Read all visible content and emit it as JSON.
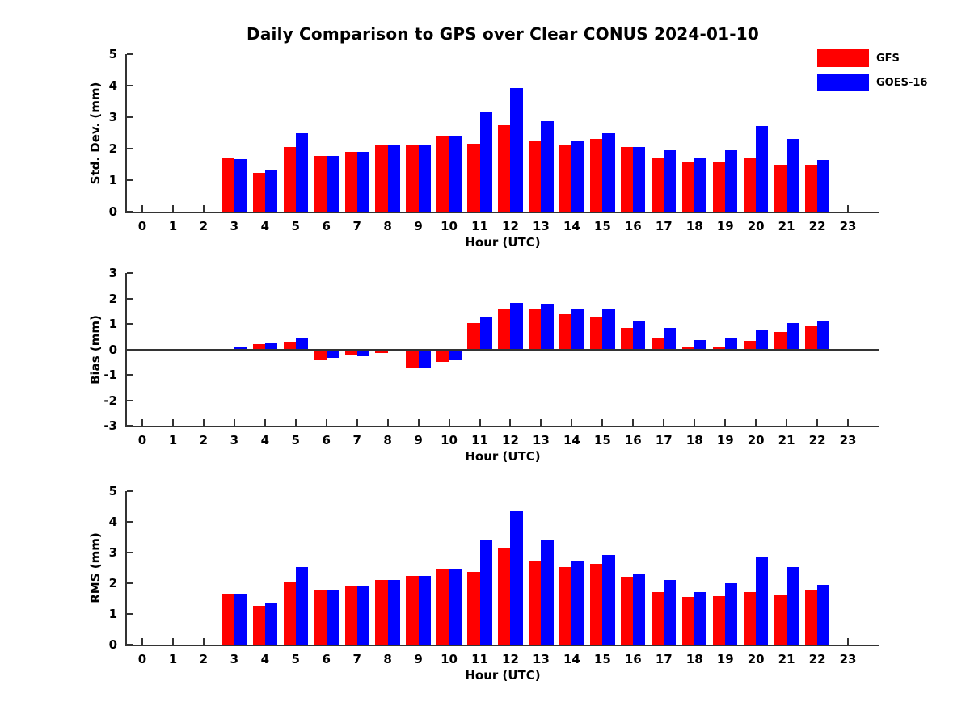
{
  "title": "Daily Comparison to GPS over Clear CONUS 2024-01-10",
  "legend": {
    "items": [
      {
        "label": "GFS",
        "color": "#ff0000"
      },
      {
        "label": "GOES-16",
        "color": "#0000ff"
      }
    ]
  },
  "chart_data": [
    {
      "type": "bar",
      "ylabel": "Std. Dev. (mm)",
      "xlabel": "Hour (UTC)",
      "ylim": [
        0,
        5
      ],
      "yticks": [
        0,
        1,
        2,
        3,
        4,
        5
      ],
      "grid": false,
      "legend_position": "upper right outside plot",
      "categories": [
        "0",
        "1",
        "2",
        "3",
        "4",
        "5",
        "6",
        "7",
        "8",
        "9",
        "10",
        "11",
        "12",
        "13",
        "14",
        "15",
        "16",
        "17",
        "18",
        "19",
        "20",
        "21",
        "22",
        "23"
      ],
      "series": [
        {
          "name": "GFS",
          "color": "#ff0000",
          "values": [
            null,
            null,
            null,
            1.7,
            1.22,
            2.05,
            1.78,
            1.9,
            2.1,
            2.13,
            2.42,
            2.16,
            2.75,
            2.24,
            2.12,
            2.31,
            2.05,
            1.7,
            1.56,
            1.57,
            1.72,
            1.5,
            1.5,
            null
          ]
        },
        {
          "name": "GOES-16",
          "color": "#0000ff",
          "values": [
            null,
            null,
            null,
            1.67,
            1.32,
            2.48,
            1.78,
            1.9,
            2.1,
            2.13,
            2.42,
            3.15,
            3.93,
            2.88,
            2.25,
            2.48,
            2.05,
            1.94,
            1.68,
            1.95,
            2.71,
            2.3,
            1.63,
            null
          ]
        }
      ]
    },
    {
      "type": "bar",
      "ylabel": "Bias (mm)",
      "xlabel": "Hour (UTC)",
      "ylim": [
        -3,
        3
      ],
      "yticks": [
        -3,
        -2,
        -1,
        0,
        1,
        2,
        3
      ],
      "grid": false,
      "zero_line": true,
      "categories": [
        "0",
        "1",
        "2",
        "3",
        "4",
        "5",
        "6",
        "7",
        "8",
        "9",
        "10",
        "11",
        "12",
        "13",
        "14",
        "15",
        "16",
        "17",
        "18",
        "19",
        "20",
        "21",
        "22",
        "23"
      ],
      "series": [
        {
          "name": "GFS",
          "color": "#ff0000",
          "values": [
            null,
            null,
            null,
            0.03,
            0.2,
            0.29,
            -0.44,
            -0.22,
            -0.13,
            -0.72,
            -0.5,
            1.04,
            1.57,
            1.6,
            1.37,
            1.27,
            0.85,
            0.45,
            0.12,
            0.12,
            0.34,
            0.68,
            0.94,
            null
          ]
        },
        {
          "name": "GOES-16",
          "color": "#0000ff",
          "values": [
            null,
            null,
            null,
            0.1,
            0.23,
            0.42,
            -0.33,
            -0.26,
            -0.08,
            -0.72,
            -0.42,
            1.27,
            1.84,
            1.8,
            1.56,
            1.56,
            1.08,
            0.83,
            0.38,
            0.44,
            0.78,
            1.04,
            1.12,
            null
          ]
        }
      ]
    },
    {
      "type": "bar",
      "ylabel": "RMS (mm)",
      "xlabel": "Hour (UTC)",
      "ylim": [
        0,
        5
      ],
      "yticks": [
        0,
        1,
        2,
        3,
        4,
        5
      ],
      "grid": false,
      "categories": [
        "0",
        "1",
        "2",
        "3",
        "4",
        "5",
        "6",
        "7",
        "8",
        "9",
        "10",
        "11",
        "12",
        "13",
        "14",
        "15",
        "16",
        "17",
        "18",
        "19",
        "20",
        "21",
        "22",
        "23"
      ],
      "series": [
        {
          "name": "GFS",
          "color": "#ff0000",
          "values": [
            null,
            null,
            null,
            1.65,
            1.27,
            2.06,
            1.8,
            1.9,
            2.1,
            2.23,
            2.45,
            2.38,
            3.12,
            2.72,
            2.52,
            2.64,
            2.21,
            1.72,
            1.54,
            1.58,
            1.72,
            1.63,
            1.76,
            null
          ]
        },
        {
          "name": "GOES-16",
          "color": "#0000ff",
          "values": [
            null,
            null,
            null,
            1.67,
            1.35,
            2.52,
            1.8,
            1.9,
            2.1,
            2.23,
            2.45,
            3.4,
            4.33,
            3.4,
            2.73,
            2.93,
            2.31,
            2.1,
            1.71,
            2.0,
            2.83,
            2.52,
            1.95,
            null
          ]
        }
      ]
    }
  ]
}
